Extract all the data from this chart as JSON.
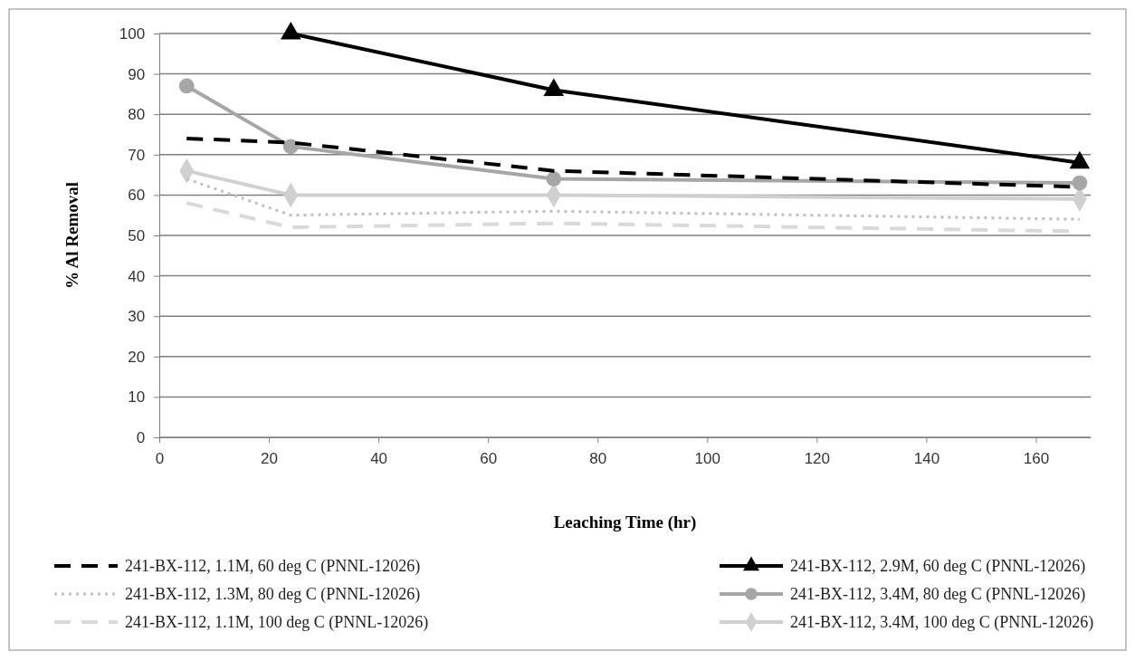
{
  "chart_data": {
    "type": "line",
    "xlabel": "Leaching Time (hr)",
    "ylabel": "% Al Removal",
    "xlim": [
      0,
      170
    ],
    "xticks": [
      0,
      20,
      40,
      60,
      80,
      100,
      120,
      140,
      160
    ],
    "ylim": [
      0,
      100
    ],
    "yticks": [
      0,
      10,
      20,
      30,
      40,
      50,
      60,
      70,
      80,
      90,
      100
    ],
    "grid": "y",
    "legend": "bottom",
    "series": [
      {
        "name": "241-BX-112, 1.1M, 60 deg C (PNNL-12026)",
        "color": "#000000",
        "x": [
          5,
          24,
          72,
          168
        ],
        "values": [
          74,
          73,
          66,
          62
        ],
        "marker": "none",
        "line_style": "dashed"
      },
      {
        "name": "241-BX-112, 2.9M, 60 deg C (PNNL-12026)",
        "color": "#000000",
        "x": [
          24,
          72,
          168
        ],
        "values": [
          100,
          86,
          68
        ],
        "marker": "triangle",
        "line_style": "solid"
      },
      {
        "name": "241-BX-112, 1.3M, 80 deg C (PNNL-12026)",
        "color": "#bfbfbf",
        "x": [
          5,
          24,
          72,
          168
        ],
        "values": [
          64,
          55,
          56,
          54
        ],
        "marker": "none",
        "line_style": "dotted"
      },
      {
        "name": "241-BX-112, 3.4M, 80 deg C (PNNL-12026)",
        "color": "#a6a6a6",
        "x": [
          5,
          24,
          72,
          168
        ],
        "values": [
          87,
          72,
          64,
          63
        ],
        "marker": "circle",
        "line_style": "solid"
      },
      {
        "name": "241-BX-112, 1.1M, 100 deg C (PNNL-12026)",
        "color": "#d9d9d9",
        "x": [
          5,
          24,
          72,
          168
        ],
        "values": [
          58,
          52,
          53,
          51
        ],
        "marker": "none",
        "line_style": "dashed"
      },
      {
        "name": "241-BX-112, 3.4M, 100 deg C (PNNL-12026)",
        "color": "#d0d0d0",
        "x": [
          5,
          24,
          72,
          168
        ],
        "values": [
          66,
          60,
          60,
          59
        ],
        "marker": "diamond",
        "line_style": "solid"
      }
    ]
  }
}
